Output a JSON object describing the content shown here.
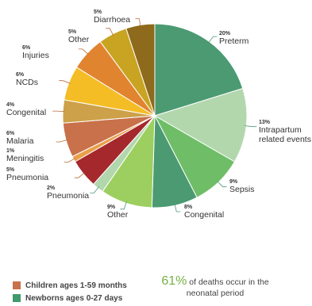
{
  "chart_data": {
    "type": "pie",
    "slices": [
      {
        "label": "Preterm",
        "value_label": "20%",
        "value": 20,
        "color": "#4b9a72",
        "group": "newborn"
      },
      {
        "label": "Intrapartum related events",
        "value_label": "13%",
        "value": 13,
        "color": "#b2d7ad",
        "group": "newborn"
      },
      {
        "label": "Sepsis",
        "value_label": "9%",
        "value": 9,
        "color": "#6fbe67",
        "group": "newborn"
      },
      {
        "label": "Congenital",
        "value_label": "8%",
        "value": 8,
        "color": "#4b9a72",
        "group": "newborn"
      },
      {
        "label": "Other",
        "value_label": "9%",
        "value": 9,
        "color": "#9ccf5f",
        "group": "newborn"
      },
      {
        "label": "Pneumonia",
        "value_label": "2%",
        "value": 2,
        "color": "#b2d7ad",
        "group": "newborn"
      },
      {
        "label": "Pneumonia",
        "value_label": "5%",
        "value": 5,
        "color": "#a4282c",
        "group": "child"
      },
      {
        "label": "Meningitis",
        "value_label": "1%",
        "value": 1,
        "color": "#e9a04b",
        "group": "child"
      },
      {
        "label": "Malaria",
        "value_label": "6%",
        "value": 6,
        "color": "#c8714a",
        "group": "child"
      },
      {
        "label": "Congenital",
        "value_label": "4%",
        "value": 4,
        "color": "#cda14a",
        "group": "child"
      },
      {
        "label": "NCDs",
        "value_label": "6%",
        "value": 6,
        "color": "#f4bd25",
        "group": "child"
      },
      {
        "label": "Injuries",
        "value_label": "6%",
        "value": 6,
        "color": "#e18430",
        "group": "child"
      },
      {
        "label": "Other",
        "value_label": "5%",
        "value": 5,
        "color": "#c9a423",
        "group": "child"
      },
      {
        "label": "Diarrhoea",
        "value_label": "5%",
        "value": 5,
        "color": "#8e6a1c",
        "group": "child"
      }
    ],
    "legend": [
      {
        "label": "Children ages 1-59 months",
        "color": "#c8714a"
      },
      {
        "label": "Newborns ages 0-27 days",
        "color": "#3f9a6c"
      }
    ],
    "legend_position": "bottom-left"
  },
  "note": {
    "number": "61%",
    "text_1": "of deaths occur in the",
    "text_2": "neonatal period"
  }
}
